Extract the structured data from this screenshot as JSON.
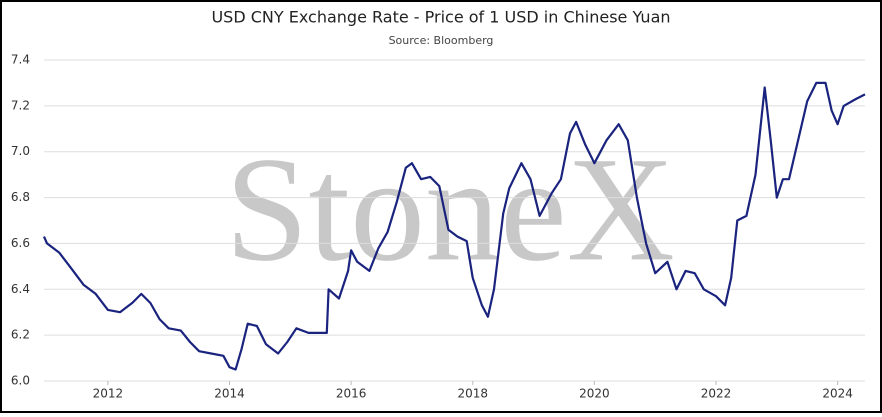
{
  "chart_data": {
    "type": "line",
    "title": "USD CNY Exchange Rate - Price of 1 USD in Chinese Yuan",
    "subtitle": "Source: Bloomberg",
    "watermark": "StoneX",
    "grid": true,
    "xlim": [
      2010.95,
      2024.45
    ],
    "xticks": [
      2012,
      2014,
      2016,
      2018,
      2020,
      2022,
      2024
    ],
    "ylim": [
      6,
      7.4
    ],
    "yticks": [
      {
        "value": 6,
        "label": "6.0"
      },
      6.2,
      6.4,
      6.6,
      6.8,
      {
        "value": 7,
        "label": "7.0"
      },
      7.2,
      7.4
    ],
    "x": [
      2010.95,
      2011.0,
      2011.2,
      2011.4,
      2011.6,
      2011.8,
      2012.0,
      2012.2,
      2012.4,
      2012.55,
      2012.7,
      2012.85,
      2013.0,
      2013.2,
      2013.35,
      2013.5,
      2013.7,
      2013.9,
      2014.0,
      2014.1,
      2014.2,
      2014.3,
      2014.45,
      2014.6,
      2014.8,
      2014.95,
      2015.1,
      2015.3,
      2015.5,
      2015.6,
      2015.63,
      2015.8,
      2015.95,
      2016.0,
      2016.1,
      2016.3,
      2016.45,
      2016.6,
      2016.75,
      2016.9,
      2017.0,
      2017.15,
      2017.3,
      2017.45,
      2017.6,
      2017.75,
      2017.9,
      2018.0,
      2018.15,
      2018.25,
      2018.35,
      2018.5,
      2018.6,
      2018.8,
      2018.95,
      2019.1,
      2019.3,
      2019.45,
      2019.6,
      2019.7,
      2019.85,
      2020.0,
      2020.2,
      2020.4,
      2020.55,
      2020.7,
      2020.85,
      2021.0,
      2021.2,
      2021.35,
      2021.5,
      2021.65,
      2021.8,
      2022.0,
      2022.15,
      2022.25,
      2022.35,
      2022.5,
      2022.65,
      2022.8,
      2022.9,
      2023.0,
      2023.1,
      2023.2,
      2023.35,
      2023.5,
      2023.65,
      2023.8,
      2023.9,
      2024.0,
      2024.1,
      2024.3,
      2024.45
    ],
    "series": [
      {
        "name": "USD CNY",
        "color": "#1a237e",
        "values": [
          6.63,
          6.6,
          6.56,
          6.49,
          6.42,
          6.38,
          6.31,
          6.3,
          6.34,
          6.38,
          6.34,
          6.27,
          6.23,
          6.22,
          6.17,
          6.13,
          6.12,
          6.11,
          6.06,
          6.05,
          6.14,
          6.25,
          6.24,
          6.16,
          6.12,
          6.17,
          6.23,
          6.21,
          6.21,
          6.21,
          6.4,
          6.36,
          6.48,
          6.57,
          6.52,
          6.48,
          6.58,
          6.65,
          6.78,
          6.93,
          6.95,
          6.88,
          6.89,
          6.85,
          6.66,
          6.63,
          6.61,
          6.45,
          6.33,
          6.28,
          6.4,
          6.73,
          6.84,
          6.95,
          6.88,
          6.72,
          6.82,
          6.88,
          7.08,
          7.13,
          7.03,
          6.95,
          7.05,
          7.12,
          7.05,
          6.8,
          6.6,
          6.47,
          6.52,
          6.4,
          6.48,
          6.47,
          6.4,
          6.37,
          6.33,
          6.45,
          6.7,
          6.72,
          6.9,
          7.28,
          7.05,
          6.8,
          6.88,
          6.88,
          7.05,
          7.22,
          7.3,
          7.3,
          7.18,
          7.12,
          7.2,
          7.23,
          7.25
        ]
      }
    ]
  }
}
